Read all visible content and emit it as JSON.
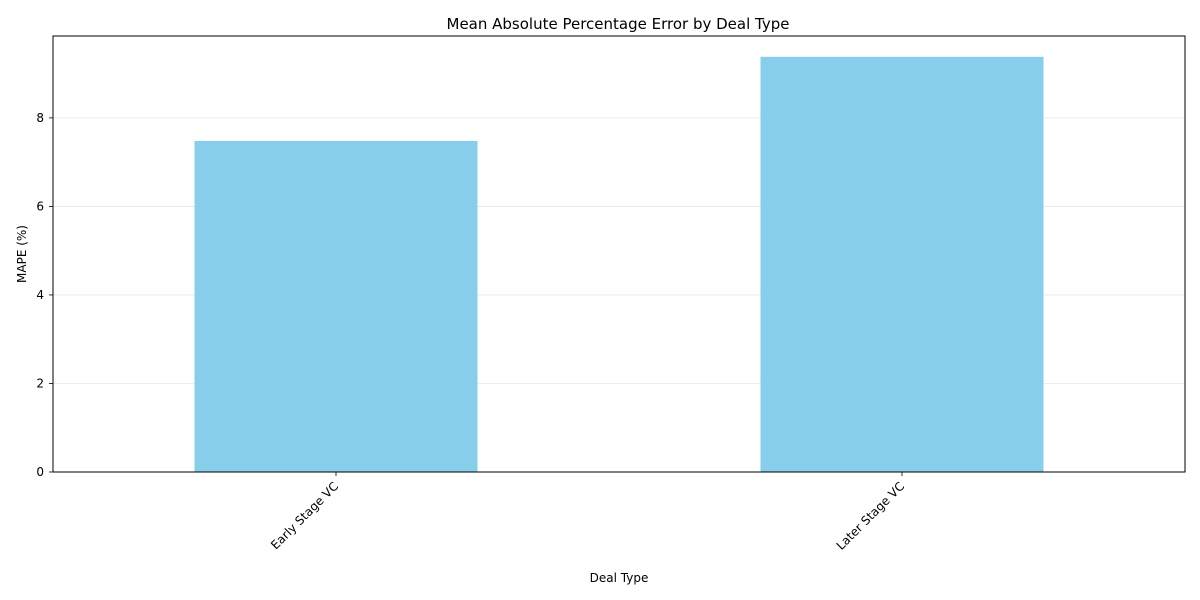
{
  "chart_data": {
    "type": "bar",
    "title": "Mean Absolute Percentage Error by Deal Type",
    "xlabel": "Deal Type",
    "ylabel": "MAPE (%)",
    "categories": [
      "Early Stage VC",
      "Later Stage VC"
    ],
    "values": [
      7.48,
      9.38
    ],
    "ylim": [
      0,
      9.85
    ],
    "yticks": [
      0,
      2,
      4,
      6,
      8
    ],
    "grid": "y-axis",
    "bar_color": "#87ceeb"
  }
}
